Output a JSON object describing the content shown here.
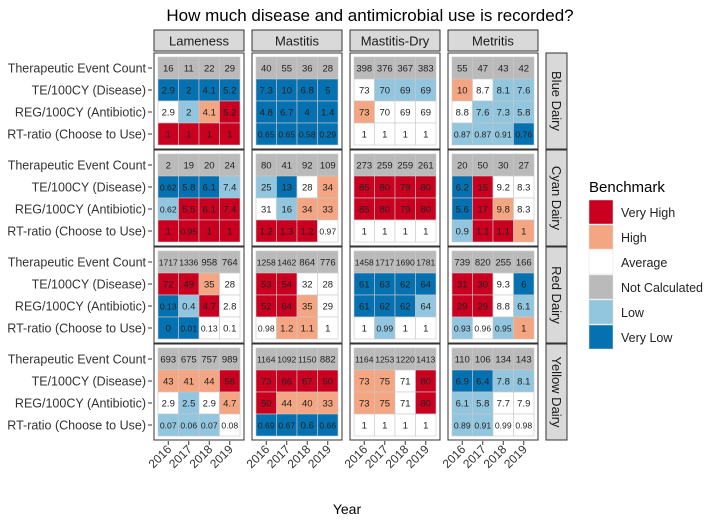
{
  "chart_data": {
    "type": "heatmap",
    "title": "How much disease and antimicrobial use is recorded?",
    "xlabel": "Year",
    "years": [
      "2016",
      "2017",
      "2018",
      "2019"
    ],
    "metrics": [
      "Therapeutic Event Count",
      "TE/100CY (Disease)",
      "REG/100CY (Antibiotic)",
      "RT-ratio (Choose to Use)"
    ],
    "diseases": [
      "Lameness",
      "Mastitis",
      "Mastitis-Dry",
      "Metritis"
    ],
    "dairies": [
      "Blue Dairy",
      "Cyan Dairy",
      "Red Dairy",
      "Yellow Dairy"
    ],
    "legend": {
      "title": "Benchmark",
      "position": "right",
      "items": [
        {
          "code": "VH",
          "label": "Very High",
          "color": "#ca0020"
        },
        {
          "code": "H",
          "label": "High",
          "color": "#f4a582"
        },
        {
          "code": "A",
          "label": "Average",
          "color": "#ffffff"
        },
        {
          "code": "NC",
          "label": "Not Calculated",
          "color": "#bababa"
        },
        {
          "code": "L",
          "label": "Low",
          "color": "#92c5de"
        },
        {
          "code": "VL",
          "label": "Very Low",
          "color": "#0571b0"
        }
      ]
    },
    "cells": {
      "Blue Dairy": {
        "Lameness": {
          "values": [
            [
              "16",
              "11",
              "22",
              "29"
            ],
            [
              "2.9",
              "2",
              "4.1",
              "5.2"
            ],
            [
              "2.9",
              "2",
              "4.1",
              "5.2"
            ],
            [
              "1",
              "1",
              "1",
              "1"
            ]
          ],
          "levels": [
            [
              "NC",
              "NC",
              "NC",
              "NC"
            ],
            [
              "VL",
              "VL",
              "VL",
              "VL"
            ],
            [
              "A",
              "L",
              "H",
              "VH"
            ],
            [
              "VH",
              "VH",
              "VH",
              "VH"
            ]
          ]
        },
        "Mastitis": {
          "values": [
            [
              "40",
              "55",
              "36",
              "28"
            ],
            [
              "7.3",
              "10",
              "6.8",
              "5"
            ],
            [
              "4.8",
              "6.7",
              "4",
              "1.4"
            ],
            [
              "0.65",
              "0.65",
              "0.58",
              "0.29"
            ]
          ],
          "levels": [
            [
              "NC",
              "NC",
              "NC",
              "NC"
            ],
            [
              "VL",
              "VL",
              "VL",
              "VL"
            ],
            [
              "VL",
              "VL",
              "VL",
              "VL"
            ],
            [
              "VL",
              "VL",
              "VL",
              "VL"
            ]
          ]
        },
        "Mastitis-Dry": {
          "values": [
            [
              "398",
              "376",
              "367",
              "383"
            ],
            [
              "73",
              "70",
              "69",
              "69"
            ],
            [
              "73",
              "70",
              "69",
              "69"
            ],
            [
              "1",
              "1",
              "1",
              "1"
            ]
          ],
          "levels": [
            [
              "NC",
              "NC",
              "NC",
              "NC"
            ],
            [
              "A",
              "L",
              "L",
              "L"
            ],
            [
              "H",
              "A",
              "A",
              "A"
            ],
            [
              "A",
              "A",
              "A",
              "A"
            ]
          ]
        },
        "Metritis": {
          "values": [
            [
              "55",
              "47",
              "43",
              "42"
            ],
            [
              "10",
              "8.7",
              "8.1",
              "7.6"
            ],
            [
              "8.8",
              "7.6",
              "7.3",
              "5.8"
            ],
            [
              "0.87",
              "0.87",
              "0.91",
              "0.76"
            ]
          ],
          "levels": [
            [
              "NC",
              "NC",
              "NC",
              "NC"
            ],
            [
              "H",
              "A",
              "L",
              "L"
            ],
            [
              "A",
              "L",
              "L",
              "L"
            ],
            [
              "L",
              "L",
              "L",
              "VL"
            ]
          ]
        }
      },
      "Cyan Dairy": {
        "Lameness": {
          "values": [
            [
              "2",
              "19",
              "20",
              "24"
            ],
            [
              "0.62",
              "5.8",
              "6.1",
              "7.4"
            ],
            [
              "0.62",
              "5.5",
              "6.1",
              "7.4"
            ],
            [
              "1",
              "0.95",
              "1",
              "1"
            ]
          ],
          "levels": [
            [
              "NC",
              "NC",
              "NC",
              "NC"
            ],
            [
              "VL",
              "VL",
              "VL",
              "L"
            ],
            [
              "L",
              "VH",
              "VH",
              "VH"
            ],
            [
              "VH",
              "VH",
              "VH",
              "VH"
            ]
          ]
        },
        "Mastitis": {
          "values": [
            [
              "80",
              "41",
              "92",
              "109"
            ],
            [
              "25",
              "13",
              "28",
              "34"
            ],
            [
              "31",
              "16",
              "34",
              "33"
            ],
            [
              "1.2",
              "1.3",
              "1.2",
              "0.97"
            ]
          ],
          "levels": [
            [
              "NC",
              "NC",
              "NC",
              "NC"
            ],
            [
              "L",
              "VL",
              "A",
              "H"
            ],
            [
              "A",
              "L",
              "H",
              "H"
            ],
            [
              "VH",
              "VH",
              "VH",
              "A"
            ]
          ]
        },
        "Mastitis-Dry": {
          "values": [
            [
              "273",
              "259",
              "259",
              "261"
            ],
            [
              "85",
              "80",
              "79",
              "80"
            ],
            [
              "85",
              "80",
              "79",
              "80"
            ],
            [
              "1",
              "1",
              "1",
              "1"
            ]
          ],
          "levels": [
            [
              "NC",
              "NC",
              "NC",
              "NC"
            ],
            [
              "VH",
              "VH",
              "VH",
              "VH"
            ],
            [
              "VH",
              "VH",
              "VH",
              "VH"
            ],
            [
              "A",
              "A",
              "A",
              "A"
            ]
          ]
        },
        "Metritis": {
          "values": [
            [
              "20",
              "50",
              "30",
              "27"
            ],
            [
              "6.2",
              "15",
              "9.2",
              "8.3"
            ],
            [
              "5.6",
              "17",
              "9.8",
              "8.3"
            ],
            [
              "0.9",
              "1.1",
              "1.1",
              "1"
            ]
          ],
          "levels": [
            [
              "NC",
              "NC",
              "NC",
              "NC"
            ],
            [
              "VL",
              "VH",
              "A",
              "A"
            ],
            [
              "VL",
              "VH",
              "H",
              "A"
            ],
            [
              "L",
              "VH",
              "VH",
              "H"
            ]
          ]
        }
      },
      "Red Dairy": {
        "Lameness": {
          "values": [
            [
              "1717",
              "1336",
              "958",
              "764"
            ],
            [
              "72",
              "49",
              "35",
              "28"
            ],
            [
              "0.13",
              "0.4",
              "4.7",
              "2.8"
            ],
            [
              "0",
              "0.01",
              "0.13",
              "0.1"
            ]
          ],
          "levels": [
            [
              "NC",
              "NC",
              "NC",
              "NC"
            ],
            [
              "VH",
              "VH",
              "H",
              "A"
            ],
            [
              "VL",
              "L",
              "VH",
              "A"
            ],
            [
              "VL",
              "VL",
              "A",
              "A"
            ]
          ]
        },
        "Mastitis": {
          "values": [
            [
              "1258",
              "1462",
              "864",
              "776"
            ],
            [
              "53",
              "54",
              "32",
              "28"
            ],
            [
              "52",
              "64",
              "35",
              "29"
            ],
            [
              "0.98",
              "1.2",
              "1.1",
              "1"
            ]
          ],
          "levels": [
            [
              "NC",
              "NC",
              "NC",
              "NC"
            ],
            [
              "VH",
              "VH",
              "A",
              "A"
            ],
            [
              "VH",
              "VH",
              "H",
              "A"
            ],
            [
              "A",
              "H",
              "H",
              "A"
            ]
          ]
        },
        "Mastitis-Dry": {
          "values": [
            [
              "1458",
              "1717",
              "1690",
              "1781"
            ],
            [
              "61",
              "63",
              "62",
              "64"
            ],
            [
              "61",
              "62",
              "62",
              "64"
            ],
            [
              "1",
              "0.99",
              "1",
              "1"
            ]
          ],
          "levels": [
            [
              "NC",
              "NC",
              "NC",
              "NC"
            ],
            [
              "VL",
              "VL",
              "VL",
              "VL"
            ],
            [
              "VL",
              "VL",
              "VL",
              "L"
            ],
            [
              "A",
              "L",
              "A",
              "A"
            ]
          ]
        },
        "Metritis": {
          "values": [
            [
              "739",
              "820",
              "255",
              "166"
            ],
            [
              "31",
              "30",
              "9.3",
              "6"
            ],
            [
              "29",
              "29",
              "8.8",
              "6.1"
            ],
            [
              "0.93",
              "0.96",
              "0.95",
              "1"
            ]
          ],
          "levels": [
            [
              "NC",
              "NC",
              "NC",
              "NC"
            ],
            [
              "VH",
              "VH",
              "A",
              "VL"
            ],
            [
              "VH",
              "VH",
              "A",
              "L"
            ],
            [
              "L",
              "A",
              "L",
              "H"
            ]
          ]
        }
      },
      "Yellow Dairy": {
        "Lameness": {
          "values": [
            [
              "693",
              "675",
              "757",
              "989"
            ],
            [
              "43",
              "41",
              "44",
              "56"
            ],
            [
              "2.9",
              "2.5",
              "2.9",
              "4.7"
            ],
            [
              "0.07",
              "0.06",
              "0.07",
              "0.08"
            ]
          ],
          "levels": [
            [
              "NC",
              "NC",
              "NC",
              "NC"
            ],
            [
              "H",
              "H",
              "H",
              "VH"
            ],
            [
              "A",
              "L",
              "A",
              "H"
            ],
            [
              "L",
              "L",
              "L",
              "A"
            ]
          ]
        },
        "Mastitis": {
          "values": [
            [
              "1164",
              "1092",
              "1150",
              "882"
            ],
            [
              "73",
              "66",
              "67",
              "50"
            ],
            [
              "50",
              "44",
              "40",
              "33"
            ],
            [
              "0.69",
              "0.67",
              "0.6",
              "0.66"
            ]
          ],
          "levels": [
            [
              "NC",
              "NC",
              "NC",
              "NC"
            ],
            [
              "VH",
              "VH",
              "VH",
              "VH"
            ],
            [
              "VH",
              "H",
              "H",
              "H"
            ],
            [
              "VL",
              "VL",
              "VL",
              "VL"
            ]
          ]
        },
        "Mastitis-Dry": {
          "values": [
            [
              "1164",
              "1253",
              "1220",
              "1413"
            ],
            [
              "73",
              "75",
              "71",
              "80"
            ],
            [
              "73",
              "75",
              "71",
              "80"
            ],
            [
              "1",
              "1",
              "1",
              "1"
            ]
          ],
          "levels": [
            [
              "NC",
              "NC",
              "NC",
              "NC"
            ],
            [
              "H",
              "H",
              "A",
              "VH"
            ],
            [
              "H",
              "H",
              "A",
              "VH"
            ],
            [
              "A",
              "A",
              "A",
              "A"
            ]
          ]
        },
        "Metritis": {
          "values": [
            [
              "110",
              "106",
              "134",
              "143"
            ],
            [
              "6.9",
              "6.4",
              "7.8",
              "8.1"
            ],
            [
              "6.1",
              "5.8",
              "7.7",
              "7.9"
            ],
            [
              "0.89",
              "0.91",
              "0.99",
              "0.98"
            ]
          ],
          "levels": [
            [
              "NC",
              "NC",
              "NC",
              "NC"
            ],
            [
              "VL",
              "VL",
              "L",
              "L"
            ],
            [
              "L",
              "L",
              "A",
              "A"
            ],
            [
              "L",
              "L",
              "A",
              "A"
            ]
          ]
        }
      }
    }
  }
}
